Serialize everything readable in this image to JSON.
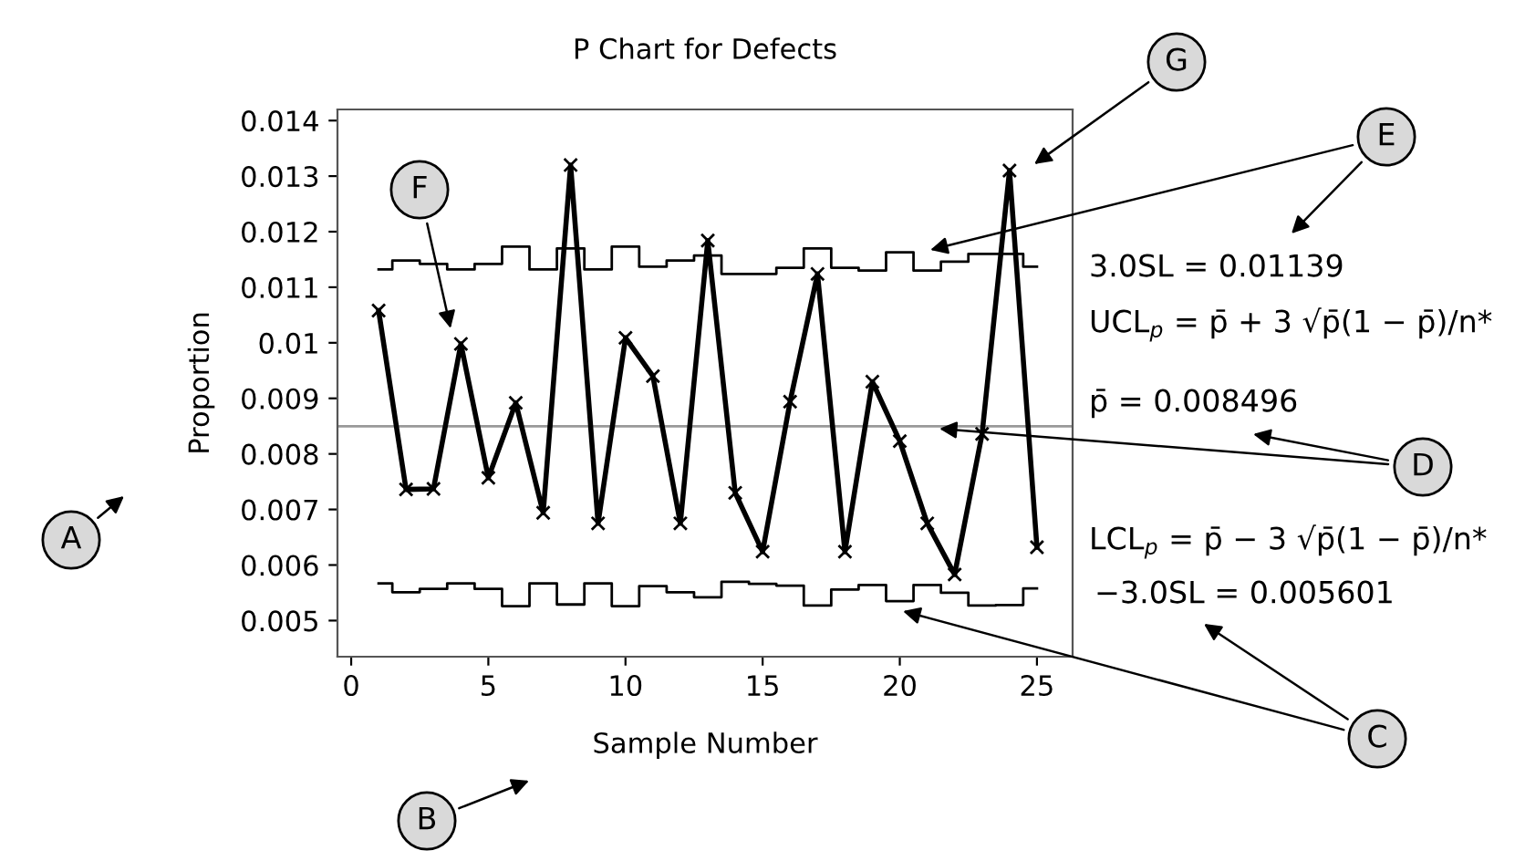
{
  "chart_data": {
    "type": "line",
    "title": "P Chart for Defects",
    "xlabel": "Sample Number",
    "ylabel": "Proportion",
    "x": [
      1,
      2,
      3,
      4,
      5,
      6,
      7,
      8,
      9,
      10,
      11,
      12,
      13,
      14,
      15,
      16,
      17,
      18,
      19,
      20,
      21,
      22,
      23,
      24,
      25
    ],
    "series": [
      {
        "type": "step",
        "color": "#000000",
        "values": [
          0.01132,
          0.01148,
          0.01142,
          0.01132,
          0.01142,
          0.01173,
          0.01132,
          0.0117,
          0.01132,
          0.01173,
          0.01137,
          0.01148,
          0.01157,
          0.01124,
          0.01124,
          0.01135,
          0.0117,
          0.01135,
          0.0113,
          0.01163,
          0.0113,
          0.01146,
          0.0116,
          0.0116,
          0.01137
        ]
      },
      {
        "type": "step",
        "color": "#000000",
        "values": [
          0.00567,
          0.00551,
          0.00557,
          0.00567,
          0.00557,
          0.00526,
          0.00567,
          0.00529,
          0.00567,
          0.00526,
          0.00562,
          0.00551,
          0.00542,
          0.0057,
          0.00566,
          0.00563,
          0.00527,
          0.00556,
          0.00564,
          0.00535,
          0.00564,
          0.0055,
          0.00527,
          0.00528,
          0.00558
        ]
      },
      {
        "color": "#000000",
        "marker": "cross",
        "values": [
          0.01058,
          0.00736,
          0.00737,
          0.00998,
          0.00757,
          0.00892,
          0.00694,
          0.0132,
          0.00675,
          0.01009,
          0.0094,
          0.00675,
          0.01184,
          0.0073,
          0.00624,
          0.00894,
          0.01124,
          0.00624,
          0.0093,
          0.00823,
          0.00675,
          0.00583,
          0.00836,
          0.0131,
          0.00632
        ]
      }
    ],
    "ref_lines": [
      {
        "axis": "y",
        "value": 0.008496,
        "color": "#999999"
      }
    ],
    "xlim": [
      -0.5,
      26.3
    ],
    "ylim": [
      0.00435,
      0.0142
    ],
    "xticks": [
      0,
      5,
      10,
      15,
      20,
      25
    ],
    "yticks": [
      0.005,
      0.006,
      0.007,
      0.008,
      0.009,
      0.01,
      0.011,
      0.012,
      0.013,
      0.014
    ],
    "grid": false,
    "legend": false,
    "annotations": [
      "A",
      "B",
      "C",
      "D",
      "E",
      "F",
      "G",
      "3.0SL = 0.01139",
      "UCL$_{p}$ = p̄ + 3 √p̄(1 − p̄)/n*",
      "p̄ = 0.008496",
      "LCL$_{p}$ = p̄ − 3 √p̄(1 − p̄)/n*",
      "−3.0SL = 0.005601"
    ]
  }
}
